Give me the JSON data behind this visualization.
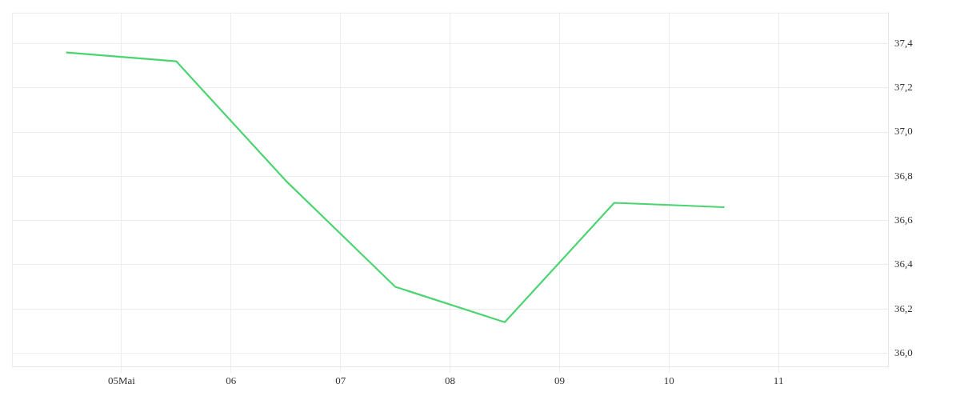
{
  "chart_data": {
    "type": "line",
    "x": [
      "--05-04T12:00",
      "--05-05T12:00",
      "--05-06T12:00",
      "--05-07T12:00",
      "--05-08T12:00",
      "--05-09T12:00",
      "--05-10T12:00"
    ],
    "series": [
      {
        "color": "#4cd471",
        "values": [
          37.36,
          37.32,
          36.78,
          36.3,
          36.14,
          36.68,
          36.66
        ]
      }
    ],
    "xlim": [
      "--05-04",
      "--05-12"
    ],
    "xticks": [
      {
        "value": "--05-05",
        "label": "05Mai"
      },
      {
        "value": "--05-06",
        "label": "06"
      },
      {
        "value": "--05-07",
        "label": "07"
      },
      {
        "value": "--05-08",
        "label": "08"
      },
      {
        "value": "--05-09",
        "label": "09"
      },
      {
        "value": "--05-10",
        "label": "10"
      },
      {
        "value": "--05-11",
        "label": "11"
      }
    ],
    "ylim": [
      35.94,
      37.54
    ],
    "yticks": [
      {
        "value": 36.0,
        "label": "36,0"
      },
      {
        "value": 36.2,
        "label": "36,2"
      },
      {
        "value": 36.4,
        "label": "36,4"
      },
      {
        "value": 36.6,
        "label": "36,6"
      },
      {
        "value": 36.8,
        "label": "36,8"
      },
      {
        "value": 37.0,
        "label": "37,0"
      },
      {
        "value": 37.2,
        "label": "37,2"
      },
      {
        "value": 37.4,
        "label": "37,4"
      }
    ],
    "grid": true,
    "legend": false,
    "marker": "none",
    "line_style": "solid"
  }
}
